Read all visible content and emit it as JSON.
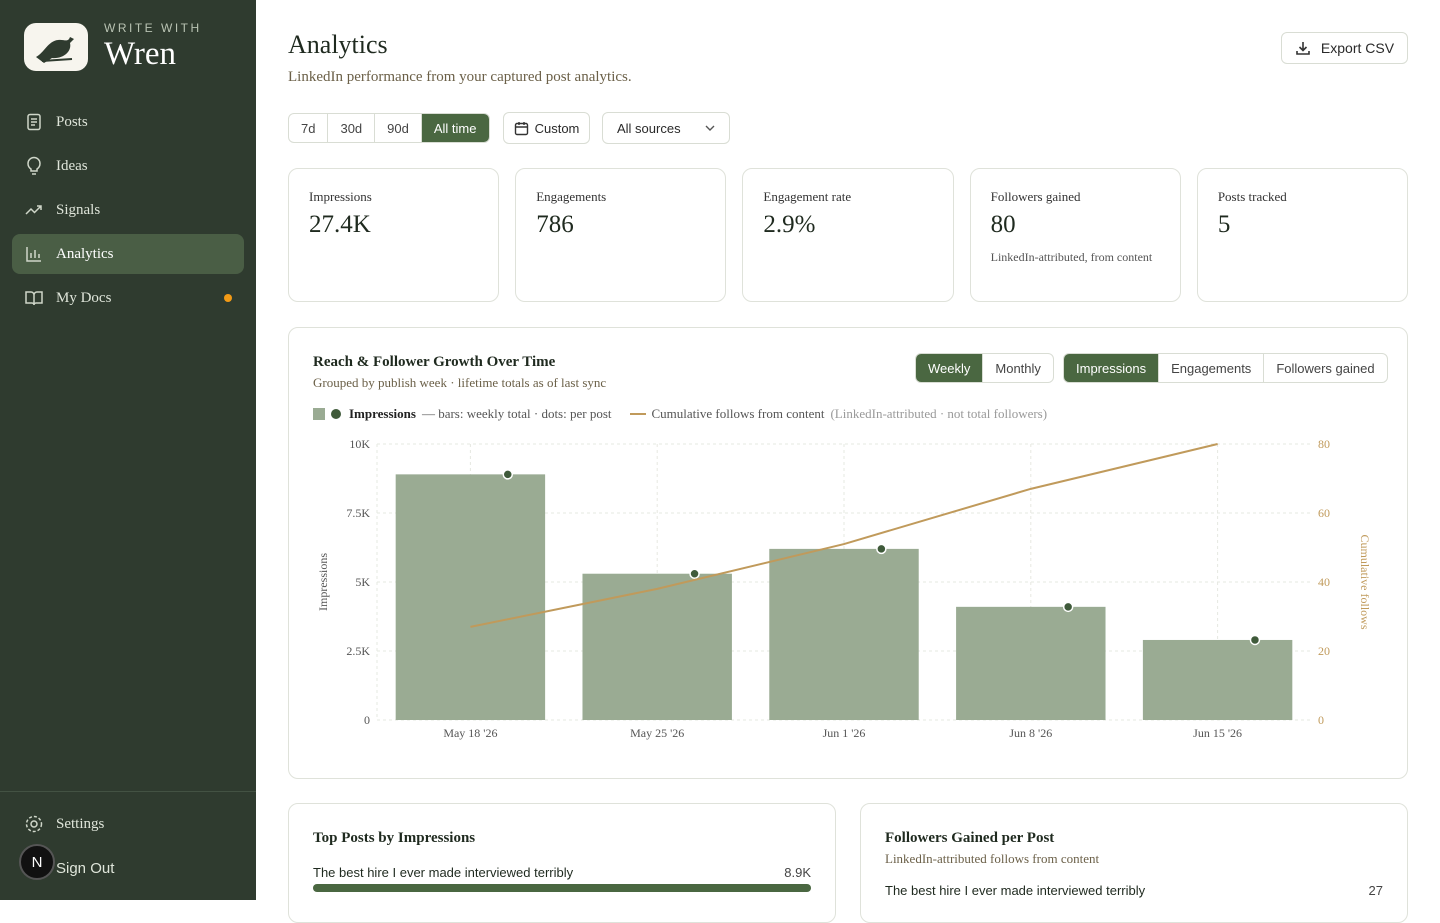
{
  "sidebar": {
    "kicker": "WRITE WITH",
    "brand": "Wren",
    "nav": [
      "Posts",
      "Ideas",
      "Signals",
      "Analytics",
      "My Docs"
    ],
    "active": 3,
    "footer": [
      "Settings",
      "Sign Out"
    ],
    "avatar": "N"
  },
  "header": {
    "title": "Analytics",
    "subtitle": "LinkedIn performance from your captured post analytics.",
    "export": "Export CSV"
  },
  "filters": {
    "ranges": [
      "7d",
      "30d",
      "90d",
      "All time"
    ],
    "selected": 3,
    "custom": "Custom",
    "source": "All sources"
  },
  "kpis": [
    {
      "label": "Impressions",
      "value": "27.4K"
    },
    {
      "label": "Engagements",
      "value": 786
    },
    {
      "label": "Engagement rate",
      "value": "2.9%"
    },
    {
      "label": "Followers gained",
      "value": 80,
      "note": "LinkedIn-attributed, from content"
    },
    {
      "label": "Posts tracked",
      "value": 5
    }
  ],
  "chart_data": {
    "type": "bar",
    "title": "Reach & Follower Growth Over Time",
    "subtitle": "Grouped by publish week · lifetime totals as of last sync",
    "granularity": [
      "Weekly",
      "Monthly"
    ],
    "granularity_selected": 0,
    "metrics": [
      "Impressions",
      "Engagements",
      "Followers gained"
    ],
    "metric_selected": 0,
    "categories": [
      "May 18 '26",
      "May 25 '26",
      "Jun 1 '26",
      "Jun 8 '26",
      "Jun 15 '26"
    ],
    "series": [
      {
        "name": "Impressions",
        "type": "bar",
        "color": "#9aab93",
        "legend_note": "— bars: weekly total · dots: per post",
        "values": [
          8900,
          5300,
          6200,
          4100,
          2900
        ],
        "dots": [
          8900,
          5300,
          6200,
          4100,
          2900
        ],
        "dot_color": "#3f5a3a"
      },
      {
        "name": "Cumulative follows from content",
        "type": "line",
        "axis": "y2",
        "color": "#c09a5b",
        "legend_note": "(LinkedIn-attributed · not total followers)",
        "values": [
          27,
          38,
          51,
          67,
          80
        ]
      }
    ],
    "ylabel": "Impressions",
    "y2label": "Cumulative follows",
    "ylim": [
      0,
      10000
    ],
    "yticks": [
      0,
      {
        "value": 2500,
        "label": "2.5K"
      },
      {
        "value": 5000,
        "label": "5K"
      },
      {
        "value": 7500,
        "label": "7.5K"
      },
      {
        "value": 10000,
        "label": "10K"
      }
    ],
    "y2lim": [
      0,
      80
    ],
    "y2ticks": [
      0,
      20,
      40,
      60,
      80
    ],
    "grid": true
  },
  "top_posts": {
    "title": "Top Posts by Impressions",
    "rows": [
      {
        "title": "The best hire I ever made interviewed terribly",
        "value": "8.9K"
      }
    ]
  },
  "followers": {
    "title": "Followers Gained per Post",
    "subtitle": "LinkedIn-attributed follows from content",
    "rows": [
      {
        "title": "The best hire I ever made interviewed terribly",
        "value": 27
      }
    ]
  }
}
